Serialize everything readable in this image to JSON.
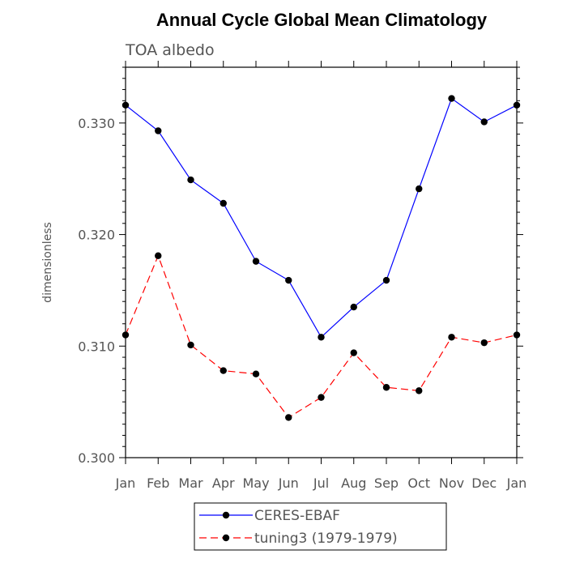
{
  "chart_data": {
    "type": "line",
    "title": "Annual Cycle Global Mean Climatology",
    "subtitle": "TOA albedo",
    "ylabel": "dimensionless",
    "xlabel": "",
    "categories": [
      "Jan",
      "Feb",
      "Mar",
      "Apr",
      "May",
      "Jun",
      "Jul",
      "Aug",
      "Sep",
      "Oct",
      "Nov",
      "Dec",
      "Jan"
    ],
    "ylim": [
      0.3,
      0.335
    ],
    "yticks": [
      0.3,
      0.31,
      0.32,
      0.33
    ],
    "ytick_labels": [
      "0.300",
      "0.310",
      "0.320",
      "0.330"
    ],
    "grid": false,
    "legend_position": "bottom",
    "series": [
      {
        "name": "CERES-EBAF",
        "color": "#0000ff",
        "style": "solid",
        "marker": "filled-circle",
        "values": [
          0.3316,
          0.3293,
          0.3249,
          0.3228,
          0.3176,
          0.3159,
          0.3108,
          0.3135,
          0.3159,
          0.3241,
          0.3322,
          0.3301,
          0.3316
        ]
      },
      {
        "name": "tuning3 (1979-1979)",
        "color": "#ff0000",
        "style": "dashed",
        "marker": "filled-circle",
        "values": [
          0.311,
          0.3181,
          0.3101,
          0.3078,
          0.3075,
          0.3036,
          0.3054,
          0.3094,
          0.3063,
          0.306,
          0.3108,
          0.3103,
          0.311
        ]
      }
    ]
  }
}
